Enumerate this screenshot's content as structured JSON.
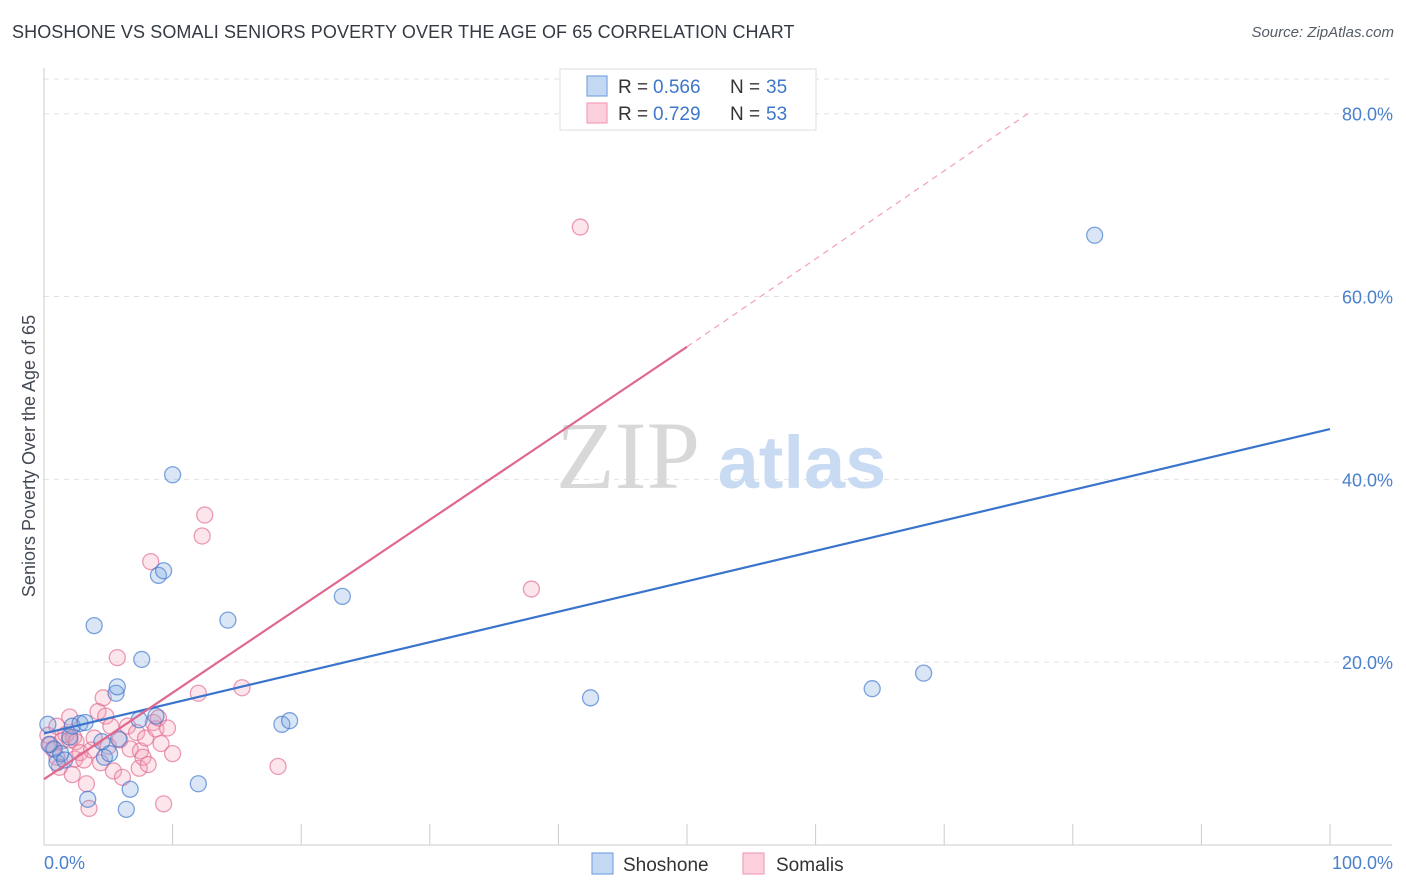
{
  "title": "SHOSHONE VS SOMALI SENIORS POVERTY OVER THE AGE OF 65 CORRELATION CHART",
  "source": "Source: ZipAtlas.com",
  "watermark": {
    "zip": "ZIP",
    "atlas": "atlas"
  },
  "colors": {
    "shoshone": "#7aa6e0",
    "shoshone_line": "#3a74cc",
    "somalis": "#f4a0b8",
    "somalis_line": "#e06890",
    "axis_text": "#4a80cc"
  },
  "legend": {
    "rows": [
      {
        "r_label": "R = ",
        "r_value": "0.566",
        "n_label": "N = ",
        "n_value": "35"
      },
      {
        "r_label": "R = ",
        "r_value": "0.729",
        "n_label": "N = ",
        "n_value": "53"
      }
    ]
  },
  "chart_data": {
    "type": "scatter",
    "title": "SHOSHONE VS SOMALI SENIORS POVERTY OVER THE AGE OF 65 CORRELATION CHART",
    "xlabel": "",
    "ylabel": "Seniors Poverty Over the Age of 65",
    "xlim": [
      0,
      100
    ],
    "ylim": [
      0,
      85
    ],
    "x_tick_labels": [
      "0.0%",
      "100.0%"
    ],
    "y_ticks": [
      20,
      40,
      60,
      80
    ],
    "y_tick_labels": [
      "20.0%",
      "40.0%",
      "60.0%",
      "80.0%"
    ],
    "legend_position": "top-center",
    "series": [
      {
        "name": "Shoshone",
        "points": [
          [
            0.3,
            13.2
          ],
          [
            0.8,
            10.5
          ],
          [
            1.0,
            9.0
          ],
          [
            1.3,
            10.0
          ],
          [
            1.6,
            9.3
          ],
          [
            2.0,
            11.8
          ],
          [
            2.2,
            13.0
          ],
          [
            2.8,
            13.3
          ],
          [
            3.2,
            13.4
          ],
          [
            3.4,
            5.0
          ],
          [
            3.9,
            24.0
          ],
          [
            4.5,
            11.3
          ],
          [
            4.7,
            9.6
          ],
          [
            5.1,
            10.0
          ],
          [
            5.6,
            16.6
          ],
          [
            5.7,
            17.3
          ],
          [
            5.8,
            11.6
          ],
          [
            6.4,
            3.9
          ],
          [
            6.7,
            6.1
          ],
          [
            7.4,
            13.7
          ],
          [
            7.6,
            20.3
          ],
          [
            8.7,
            14.1
          ],
          [
            8.9,
            29.5
          ],
          [
            9.3,
            30.0
          ],
          [
            10.0,
            40.5
          ],
          [
            12.0,
            6.7
          ],
          [
            14.3,
            24.6
          ],
          [
            18.5,
            13.2
          ],
          [
            19.1,
            13.6
          ],
          [
            23.2,
            27.2
          ],
          [
            42.5,
            16.1
          ],
          [
            64.4,
            17.1
          ],
          [
            68.4,
            18.8
          ],
          [
            81.7,
            66.7
          ],
          [
            0.4,
            11.0
          ]
        ],
        "trend": {
          "x0": 0,
          "y0": 12.2,
          "x1": 100,
          "y1": 45.5
        }
      },
      {
        "name": "Somalis",
        "points": [
          [
            0.3,
            12.0
          ],
          [
            0.5,
            11.0
          ],
          [
            0.7,
            10.5
          ],
          [
            1.0,
            9.6
          ],
          [
            1.2,
            8.5
          ],
          [
            1.4,
            11.4
          ],
          [
            1.7,
            12.1
          ],
          [
            2.0,
            14.0
          ],
          [
            2.2,
            7.7
          ],
          [
            2.3,
            11.8
          ],
          [
            2.4,
            9.4
          ],
          [
            2.5,
            11.3
          ],
          [
            2.8,
            10.1
          ],
          [
            3.1,
            9.3
          ],
          [
            3.3,
            6.7
          ],
          [
            3.5,
            4.0
          ],
          [
            3.7,
            10.4
          ],
          [
            3.9,
            11.7
          ],
          [
            4.2,
            14.6
          ],
          [
            4.4,
            9.0
          ],
          [
            4.6,
            16.1
          ],
          [
            4.8,
            14.1
          ],
          [
            5.0,
            10.8
          ],
          [
            5.2,
            13.0
          ],
          [
            5.4,
            8.1
          ],
          [
            5.7,
            20.5
          ],
          [
            5.9,
            11.5
          ],
          [
            6.1,
            7.4
          ],
          [
            6.5,
            13.0
          ],
          [
            6.7,
            10.5
          ],
          [
            7.2,
            12.3
          ],
          [
            7.4,
            8.4
          ],
          [
            7.5,
            10.3
          ],
          [
            7.7,
            9.6
          ],
          [
            7.9,
            11.7
          ],
          [
            8.1,
            8.8
          ],
          [
            8.3,
            31.0
          ],
          [
            8.5,
            13.4
          ],
          [
            8.7,
            12.7
          ],
          [
            8.9,
            13.9
          ],
          [
            9.1,
            11.1
          ],
          [
            9.3,
            4.5
          ],
          [
            9.6,
            12.8
          ],
          [
            10.0,
            10.0
          ],
          [
            12.0,
            16.6
          ],
          [
            12.3,
            33.8
          ],
          [
            12.5,
            36.1
          ],
          [
            15.4,
            17.2
          ],
          [
            18.2,
            8.6
          ],
          [
            37.9,
            28.0
          ],
          [
            41.7,
            67.6
          ],
          [
            1.0,
            13.0
          ],
          [
            2.0,
            11.5
          ]
        ],
        "trend": {
          "x0": 0,
          "y0": 7.2,
          "x1": 50,
          "y1": 54.5
        },
        "trend_extension": {
          "x0": 50,
          "y0": 54.5,
          "x1": 76.5,
          "y1": 80.0
        }
      }
    ]
  }
}
